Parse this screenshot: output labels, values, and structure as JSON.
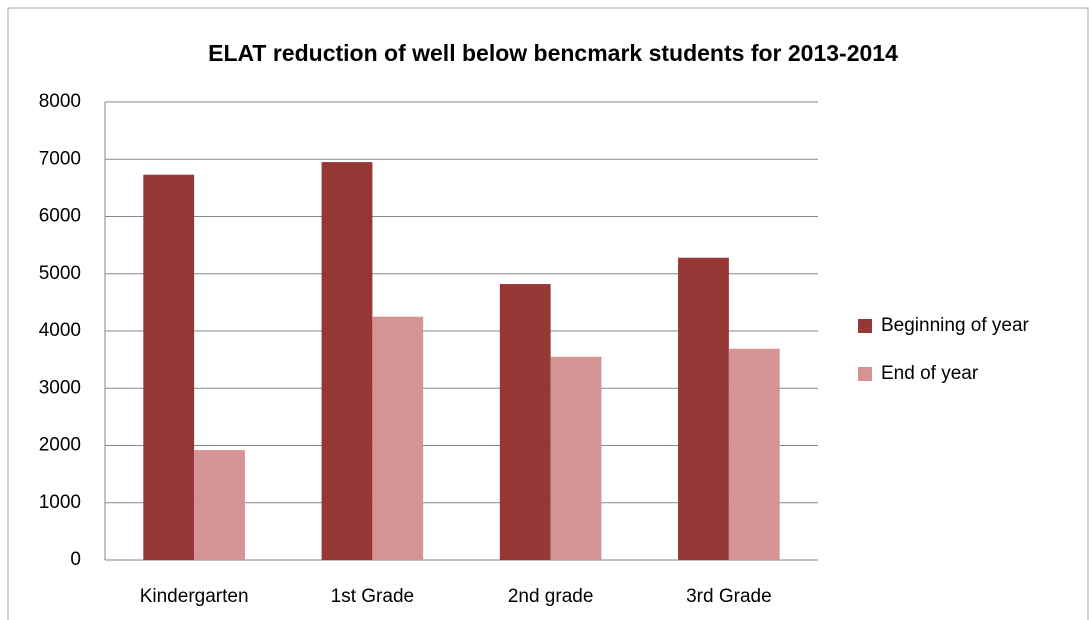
{
  "chart_data": {
    "type": "bar",
    "title": "ELAT reduction of well below bencmark students for 2013-2014",
    "categories": [
      "Kindergarten",
      "1st Grade",
      "2nd grade",
      "3rd Grade"
    ],
    "series": [
      {
        "name": "Beginning of year",
        "color": "#953735",
        "values": [
          6730,
          6950,
          4820,
          5280
        ]
      },
      {
        "name": "End of year",
        "color": "#d39493",
        "values": [
          1920,
          4250,
          3550,
          3690
        ]
      }
    ],
    "ylim": [
      0,
      8000
    ],
    "yticks": [
      0,
      1000,
      2000,
      3000,
      4000,
      5000,
      6000,
      7000,
      8000
    ],
    "grid": true,
    "legend": "right"
  }
}
